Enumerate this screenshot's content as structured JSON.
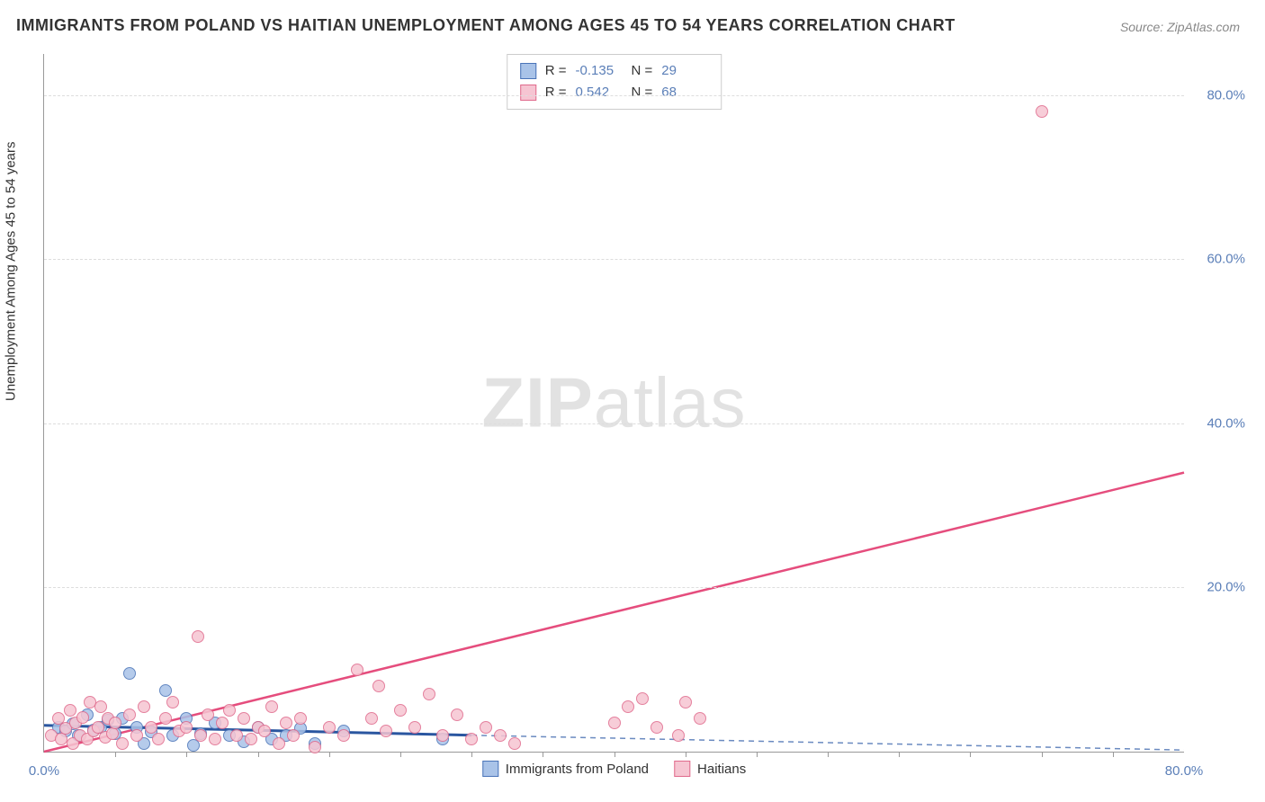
{
  "title": "IMMIGRANTS FROM POLAND VS HAITIAN UNEMPLOYMENT AMONG AGES 45 TO 54 YEARS CORRELATION CHART",
  "source": "Source: ZipAtlas.com",
  "watermark_bold": "ZIP",
  "watermark_light": "atlas",
  "y_axis_label": "Unemployment Among Ages 45 to 54 years",
  "chart": {
    "type": "scatter",
    "xlim": [
      0,
      80
    ],
    "ylim": [
      0,
      85
    ],
    "x_tick_label_left": "0.0%",
    "x_tick_label_right": "80.0%",
    "x_minor_ticks": [
      5,
      10,
      15,
      20,
      25,
      30,
      35,
      40,
      45,
      50,
      55,
      60,
      65,
      70,
      75
    ],
    "y_ticks": [
      20,
      40,
      60,
      80
    ],
    "y_tick_labels": [
      "20.0%",
      "40.0%",
      "60.0%",
      "80.0%"
    ],
    "grid_color": "#dddddd",
    "background_color": "#ffffff",
    "axis_color": "#999999",
    "tick_label_color": "#5b7fb8",
    "series": [
      {
        "name": "Immigrants from Poland",
        "fill_color": "#a9c3e8",
        "stroke_color": "#4a74b8",
        "r_value": "-0.135",
        "n_value": "29",
        "trend_line": {
          "color": "#2a56a0",
          "width": 3,
          "dash": "none",
          "y_at_x0": 3.2,
          "y_at_x30": 2.0
        },
        "trend_dash": {
          "color": "#6a8ac0",
          "width": 1.5,
          "dash": "6,5",
          "y_at_x30": 2.0,
          "y_at_x80": 0.2
        },
        "points": [
          {
            "x": 1.0,
            "y": 3.0
          },
          {
            "x": 1.5,
            "y": 2.5
          },
          {
            "x": 2.0,
            "y": 3.4
          },
          {
            "x": 2.4,
            "y": 2.0
          },
          {
            "x": 3.0,
            "y": 4.5
          },
          {
            "x": 3.5,
            "y": 2.6
          },
          {
            "x": 4.0,
            "y": 3.0
          },
          {
            "x": 4.5,
            "y": 3.8
          },
          {
            "x": 5.0,
            "y": 2.2
          },
          {
            "x": 5.5,
            "y": 4.0
          },
          {
            "x": 6.0,
            "y": 9.5
          },
          {
            "x": 6.5,
            "y": 3.0
          },
          {
            "x": 7.0,
            "y": 1.0
          },
          {
            "x": 7.5,
            "y": 2.4
          },
          {
            "x": 8.5,
            "y": 7.5
          },
          {
            "x": 9.0,
            "y": 2.0
          },
          {
            "x": 10.0,
            "y": 4.0
          },
          {
            "x": 10.5,
            "y": 0.8
          },
          {
            "x": 11.0,
            "y": 2.2
          },
          {
            "x": 12.0,
            "y": 3.5
          },
          {
            "x": 13.0,
            "y": 2.0
          },
          {
            "x": 14.0,
            "y": 1.2
          },
          {
            "x": 15.0,
            "y": 3.0
          },
          {
            "x": 16.0,
            "y": 1.5
          },
          {
            "x": 17.0,
            "y": 2.0
          },
          {
            "x": 18.0,
            "y": 2.8
          },
          {
            "x": 19.0,
            "y": 1.0
          },
          {
            "x": 21.0,
            "y": 2.5
          },
          {
            "x": 28.0,
            "y": 1.5
          }
        ]
      },
      {
        "name": "Haitians",
        "fill_color": "#f6c5d2",
        "stroke_color": "#e06a8c",
        "r_value": "0.542",
        "n_value": "68",
        "trend_line": {
          "color": "#e54d7d",
          "width": 2.5,
          "dash": "none",
          "y_at_x0": 0,
          "y_at_x80": 34
        },
        "points": [
          {
            "x": 0.5,
            "y": 2.0
          },
          {
            "x": 1.0,
            "y": 4.0
          },
          {
            "x": 1.2,
            "y": 1.5
          },
          {
            "x": 1.5,
            "y": 2.8
          },
          {
            "x": 1.8,
            "y": 5.0
          },
          {
            "x": 2.0,
            "y": 1.0
          },
          {
            "x": 2.2,
            "y": 3.5
          },
          {
            "x": 2.5,
            "y": 2.0
          },
          {
            "x": 2.7,
            "y": 4.2
          },
          {
            "x": 3.0,
            "y": 1.5
          },
          {
            "x": 3.2,
            "y": 6.0
          },
          {
            "x": 3.5,
            "y": 2.5
          },
          {
            "x": 3.8,
            "y": 3.0
          },
          {
            "x": 4.0,
            "y": 5.5
          },
          {
            "x": 4.3,
            "y": 1.8
          },
          {
            "x": 4.5,
            "y": 4.0
          },
          {
            "x": 4.8,
            "y": 2.2
          },
          {
            "x": 5.0,
            "y": 3.5
          },
          {
            "x": 5.5,
            "y": 1.0
          },
          {
            "x": 6.0,
            "y": 4.5
          },
          {
            "x": 6.5,
            "y": 2.0
          },
          {
            "x": 7.0,
            "y": 5.5
          },
          {
            "x": 7.5,
            "y": 3.0
          },
          {
            "x": 8.0,
            "y": 1.5
          },
          {
            "x": 8.5,
            "y": 4.0
          },
          {
            "x": 9.0,
            "y": 6.0
          },
          {
            "x": 9.5,
            "y": 2.5
          },
          {
            "x": 10.0,
            "y": 3.0
          },
          {
            "x": 10.8,
            "y": 14.0
          },
          {
            "x": 11.0,
            "y": 2.0
          },
          {
            "x": 11.5,
            "y": 4.5
          },
          {
            "x": 12.0,
            "y": 1.5
          },
          {
            "x": 12.5,
            "y": 3.5
          },
          {
            "x": 13.0,
            "y": 5.0
          },
          {
            "x": 13.5,
            "y": 2.0
          },
          {
            "x": 14.0,
            "y": 4.0
          },
          {
            "x": 14.5,
            "y": 1.5
          },
          {
            "x": 15.0,
            "y": 3.0
          },
          {
            "x": 15.5,
            "y": 2.5
          },
          {
            "x": 16.0,
            "y": 5.5
          },
          {
            "x": 16.5,
            "y": 1.0
          },
          {
            "x": 17.0,
            "y": 3.5
          },
          {
            "x": 17.5,
            "y": 2.0
          },
          {
            "x": 18.0,
            "y": 4.0
          },
          {
            "x": 19.0,
            "y": 0.5
          },
          {
            "x": 20.0,
            "y": 3.0
          },
          {
            "x": 21.0,
            "y": 2.0
          },
          {
            "x": 22.0,
            "y": 10.0
          },
          {
            "x": 23.0,
            "y": 4.0
          },
          {
            "x": 23.5,
            "y": 8.0
          },
          {
            "x": 24.0,
            "y": 2.5
          },
          {
            "x": 25.0,
            "y": 5.0
          },
          {
            "x": 26.0,
            "y": 3.0
          },
          {
            "x": 27.0,
            "y": 7.0
          },
          {
            "x": 28.0,
            "y": 2.0
          },
          {
            "x": 29.0,
            "y": 4.5
          },
          {
            "x": 30.0,
            "y": 1.5
          },
          {
            "x": 31.0,
            "y": 3.0
          },
          {
            "x": 32.0,
            "y": 2.0
          },
          {
            "x": 33.0,
            "y": 1.0
          },
          {
            "x": 40.0,
            "y": 3.5
          },
          {
            "x": 41.0,
            "y": 5.5
          },
          {
            "x": 42.0,
            "y": 6.5
          },
          {
            "x": 43.0,
            "y": 3.0
          },
          {
            "x": 44.5,
            "y": 2.0
          },
          {
            "x": 45.0,
            "y": 6.0
          },
          {
            "x": 46.0,
            "y": 4.0
          },
          {
            "x": 70.0,
            "y": 78.0
          }
        ]
      }
    ]
  },
  "legend_bottom_label_1": "Immigrants from Poland",
  "legend_bottom_label_2": "Haitians",
  "legend_r_label": "R =",
  "legend_n_label": "N ="
}
